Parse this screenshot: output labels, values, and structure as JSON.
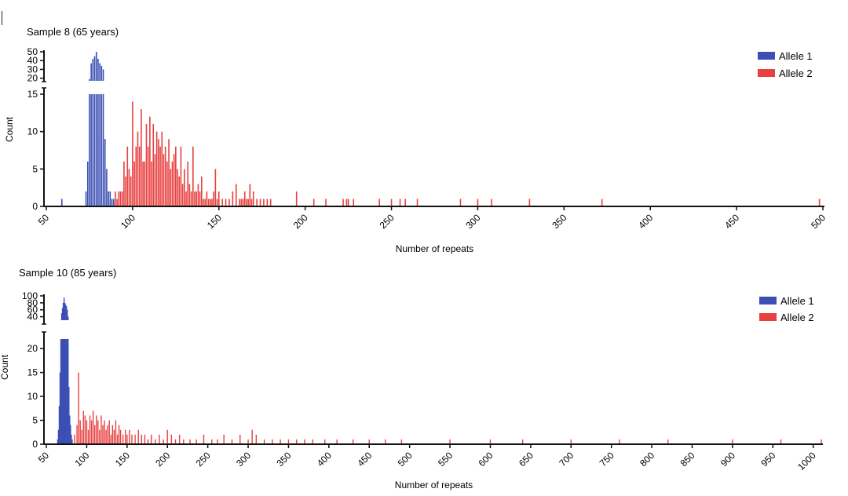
{
  "chart_data": [
    {
      "type": "bar",
      "title": "Sample 8 (65 years)",
      "xlabel": "Number of repeats",
      "ylabel": "Count",
      "xlim": [
        50,
        500
      ],
      "xticks": [
        "50",
        "100",
        "150",
        "200",
        "250",
        "300",
        "350",
        "400",
        "450",
        "500"
      ],
      "y_break": {
        "lower_range": [
          0,
          15
        ],
        "upper_range": [
          17,
          50
        ]
      },
      "yticks_lower": [
        "0",
        "5",
        "10",
        "15"
      ],
      "yticks_upper": [
        "20",
        "30",
        "40",
        "50"
      ],
      "legend_position": "top-right",
      "series": [
        {
          "name": "Allele 1",
          "color": "#3c4fb4",
          "x": [
            59,
            73,
            74,
            75,
            76,
            77,
            78,
            79,
            80,
            81,
            82,
            83,
            84,
            85,
            86,
            87,
            88,
            89
          ],
          "values": [
            1,
            2,
            6,
            19,
            37,
            42,
            45,
            50,
            42,
            37,
            34,
            30,
            9,
            5,
            2,
            2,
            1,
            1
          ]
        },
        {
          "name": "Allele 2",
          "color": "#e84040",
          "x": [
            90,
            91,
            92,
            93,
            94,
            95,
            96,
            97,
            98,
            99,
            100,
            101,
            102,
            103,
            104,
            105,
            106,
            107,
            108,
            109,
            110,
            111,
            112,
            113,
            114,
            115,
            116,
            117,
            118,
            119,
            120,
            121,
            122,
            123,
            124,
            125,
            126,
            127,
            128,
            129,
            130,
            131,
            132,
            133,
            134,
            135,
            136,
            137,
            138,
            139,
            140,
            141,
            142,
            143,
            144,
            145,
            146,
            147,
            148,
            149,
            150,
            152,
            154,
            156,
            158,
            160,
            162,
            163,
            164,
            165,
            166,
            167,
            168,
            169,
            170,
            172,
            174,
            176,
            178,
            180,
            195,
            205,
            212,
            222,
            224,
            225,
            228,
            243,
            250,
            255,
            258,
            265,
            290,
            300,
            308,
            330,
            372,
            498
          ],
          "values": [
            2,
            1,
            2,
            2,
            2,
            6,
            4,
            8,
            5,
            4,
            14,
            6,
            8,
            10,
            8,
            13,
            6,
            6,
            11,
            8,
            12,
            6,
            11,
            7,
            10,
            9,
            8,
            10,
            7,
            8,
            6,
            9,
            5,
            6,
            7,
            8,
            5,
            4,
            8,
            3,
            5,
            2,
            6,
            3,
            2,
            8,
            2,
            2,
            3,
            2,
            4,
            1,
            1,
            2,
            1,
            1,
            1,
            2,
            5,
            1,
            2,
            1,
            1,
            1,
            2,
            3,
            1,
            1,
            1,
            2,
            1,
            1,
            3,
            1,
            2,
            1,
            1,
            1,
            1,
            1,
            2,
            1,
            1,
            1,
            1,
            1,
            1,
            1,
            1,
            1,
            1,
            1,
            1,
            1,
            1,
            1,
            1,
            1
          ]
        }
      ]
    },
    {
      "type": "bar",
      "title": "Sample 10 (85 years)",
      "xlabel": "Number of repeats",
      "ylabel": "Count",
      "xlim": [
        50,
        1010
      ],
      "xticks": [
        "50",
        "100",
        "150",
        "200",
        "250",
        "300",
        "350",
        "400",
        "450",
        "500",
        "550",
        "600",
        "650",
        "700",
        "750",
        "800",
        "850",
        "900",
        "950",
        "1000"
      ],
      "y_break": {
        "lower_range": [
          0,
          22
        ],
        "upper_range": [
          30,
          100
        ]
      },
      "yticks_lower": [
        "0",
        "5",
        "10",
        "15",
        "20"
      ],
      "yticks_upper": [
        "40",
        "60",
        "80",
        "100"
      ],
      "legend_position": "top-right",
      "series": [
        {
          "name": "Allele 1",
          "color": "#3c4fb4",
          "x": [
            64,
            65,
            66,
            67,
            68,
            69,
            70,
            71,
            72,
            73,
            74,
            75,
            76,
            77,
            78,
            79,
            80,
            81,
            82
          ],
          "values": [
            1,
            3,
            8,
            15,
            30,
            50,
            65,
            80,
            95,
            80,
            75,
            70,
            60,
            40,
            12,
            6,
            4,
            2,
            1
          ]
        },
        {
          "name": "Allele 2",
          "color": "#e84040",
          "x": [
            85,
            88,
            90,
            92,
            94,
            96,
            98,
            100,
            102,
            104,
            106,
            108,
            110,
            112,
            114,
            116,
            118,
            120,
            122,
            124,
            126,
            128,
            130,
            132,
            134,
            136,
            138,
            140,
            142,
            145,
            148,
            150,
            153,
            156,
            160,
            164,
            168,
            172,
            176,
            180,
            185,
            190,
            195,
            200,
            205,
            210,
            215,
            220,
            228,
            236,
            245,
            255,
            262,
            270,
            280,
            290,
            300,
            305,
            310,
            320,
            330,
            340,
            350,
            360,
            370,
            380,
            395,
            410,
            430,
            450,
            470,
            490,
            550,
            600,
            640,
            700,
            760,
            820,
            900,
            960,
            1010
          ],
          "values": [
            2,
            4,
            15,
            5,
            3,
            7,
            6,
            5,
            3,
            6,
            5,
            7,
            4,
            6,
            5,
            3,
            6,
            4,
            5,
            3,
            4,
            5,
            2,
            4,
            3,
            5,
            2,
            4,
            3,
            2,
            3,
            2,
            3,
            2,
            2,
            3,
            2,
            2,
            1,
            2,
            1,
            2,
            1,
            3,
            2,
            1,
            2,
            1,
            1,
            1,
            2,
            1,
            1,
            2,
            1,
            2,
            1,
            3,
            2,
            1,
            1,
            1,
            1,
            1,
            1,
            1,
            1,
            1,
            1,
            1,
            1,
            1,
            1,
            1,
            1,
            1,
            1,
            1,
            1,
            1,
            1
          ]
        }
      ]
    }
  ]
}
